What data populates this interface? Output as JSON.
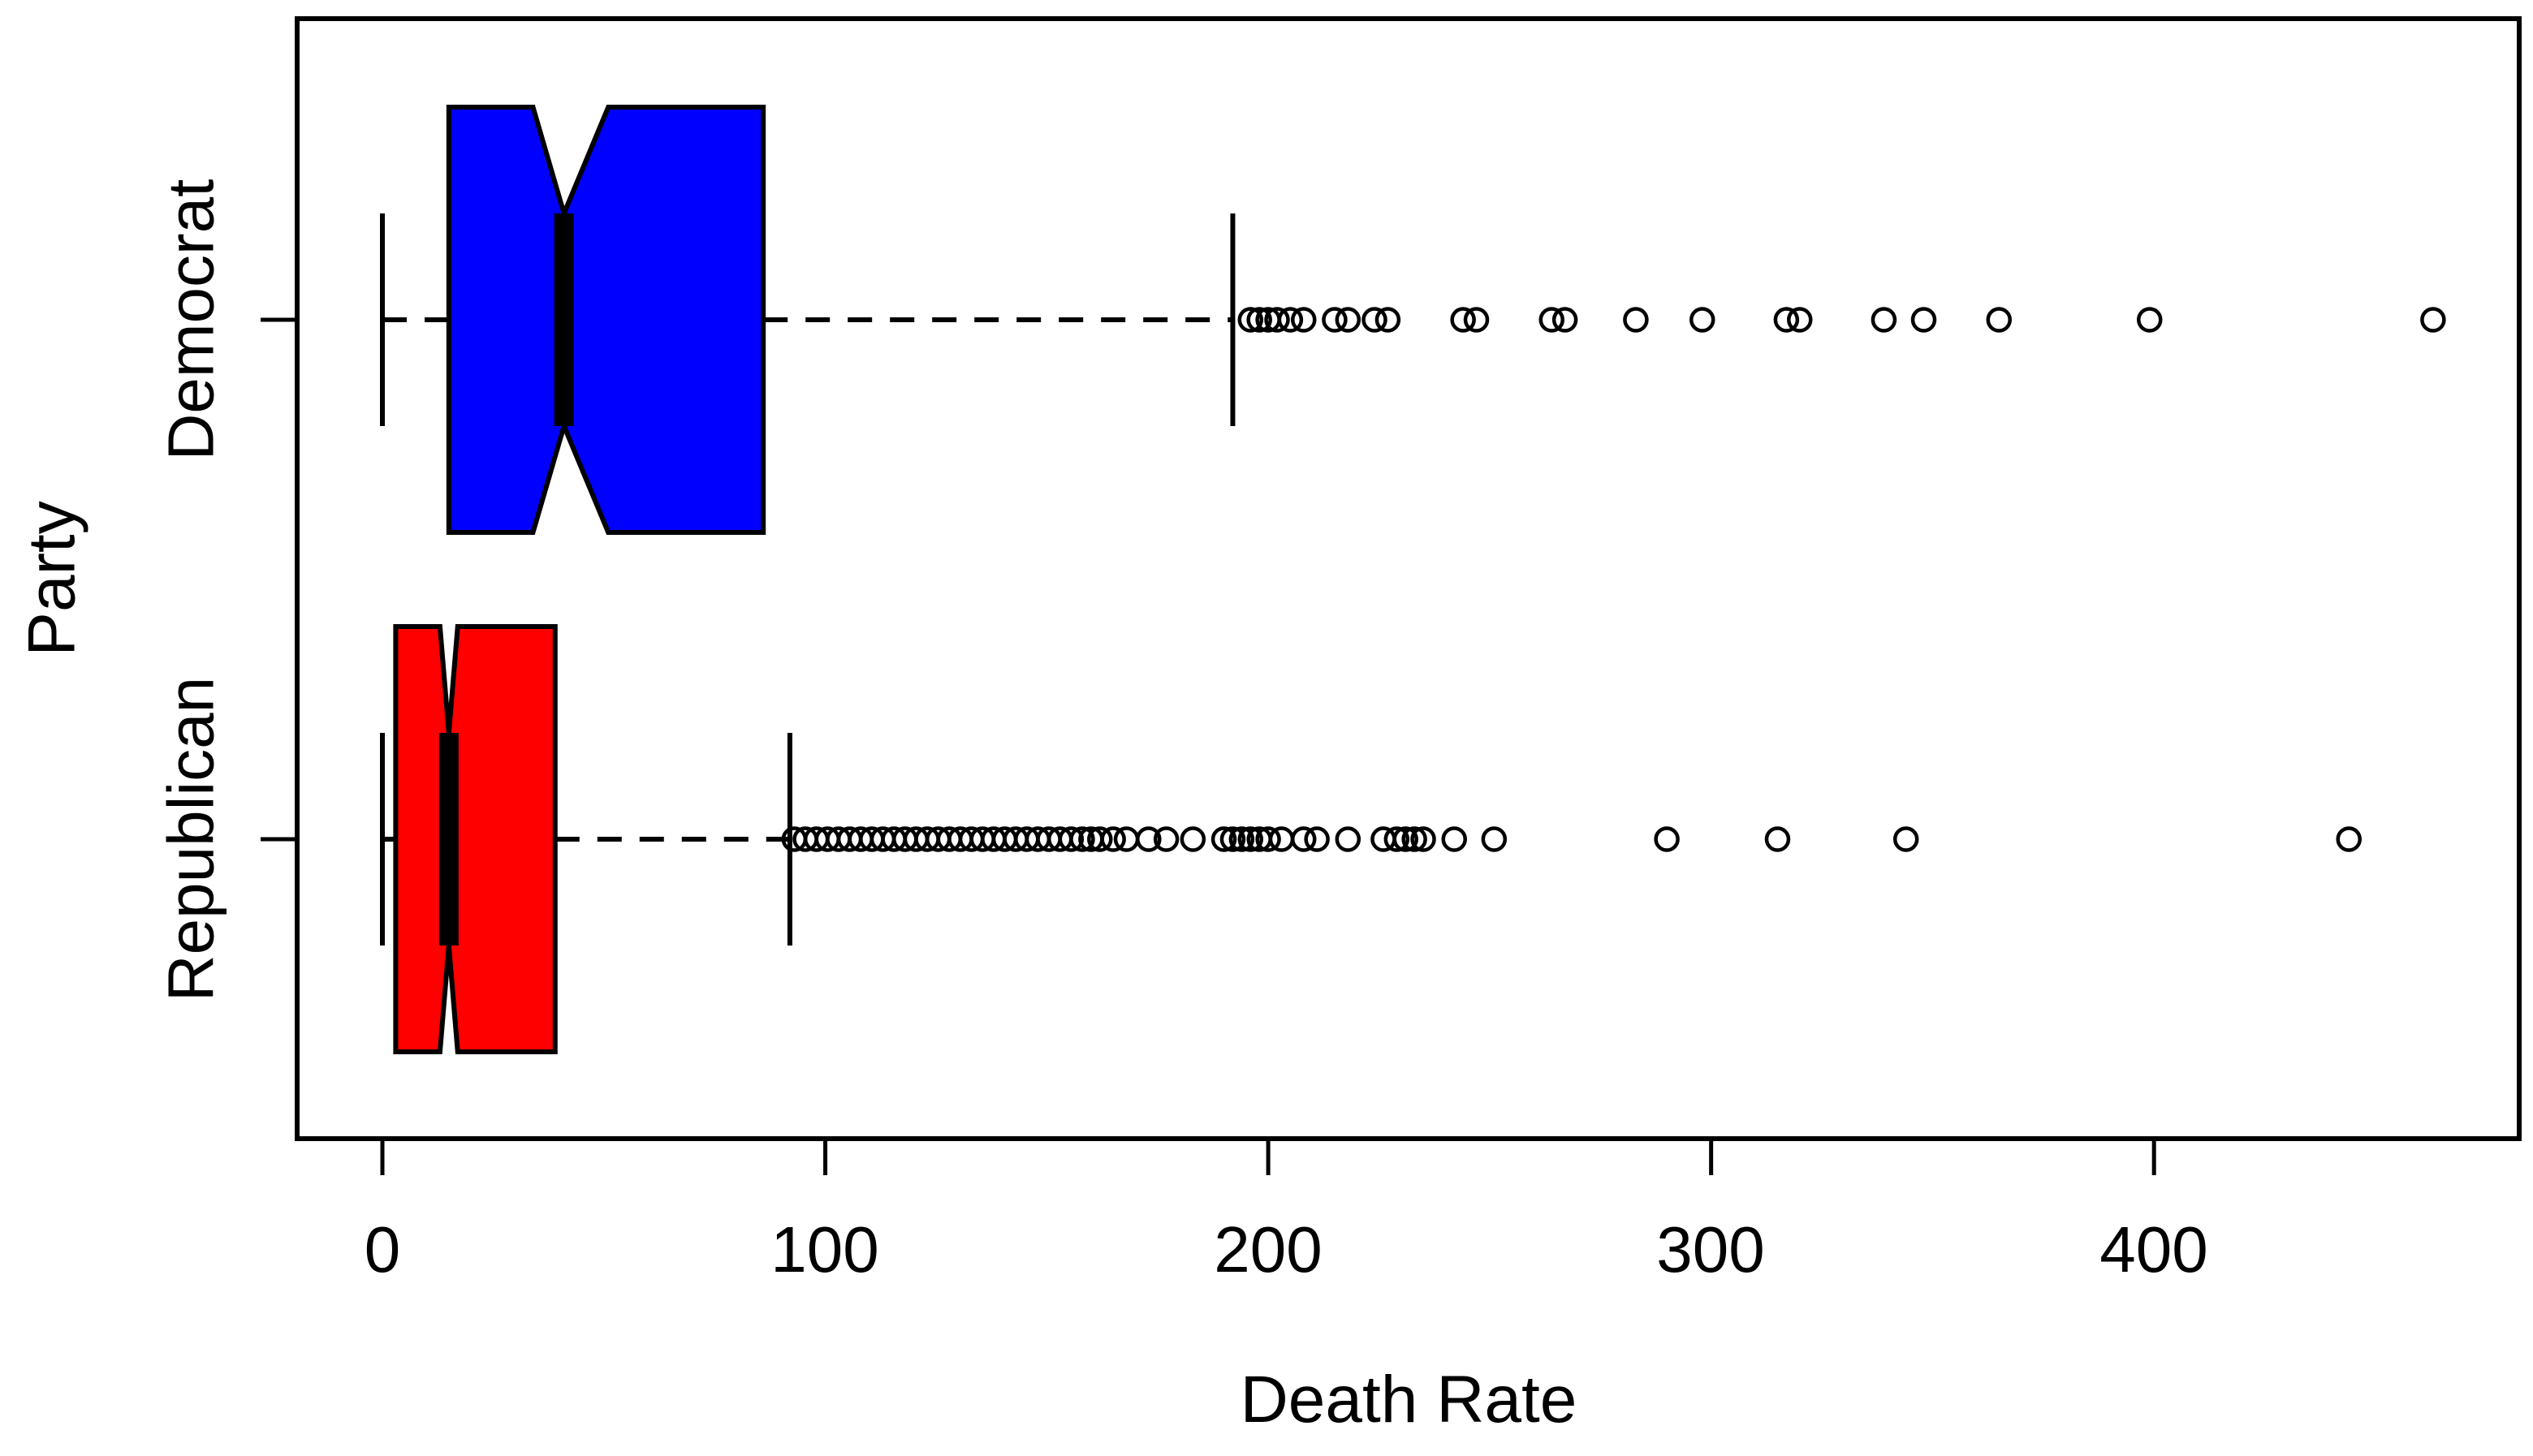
{
  "figure": {
    "background": "#ffffff",
    "frame_color": "#000000"
  },
  "chart_data": {
    "type": "boxplot",
    "orientation": "horizontal",
    "notched": true,
    "title": "",
    "xlabel": "Death Rate",
    "ylabel": "Party",
    "x_ticks": [
      0,
      100,
      200,
      300,
      400
    ],
    "xlim": [
      -19.25,
      482.45
    ],
    "grid": false,
    "legend": "none",
    "categories": [
      "Democrat",
      "Republican"
    ],
    "series": [
      {
        "name": "Democrat",
        "color": "#0000ff",
        "whisker_low": 0,
        "q1": 15,
        "median": 41,
        "q3": 86,
        "whisker_high": 192,
        "notch_low": 34,
        "notch_high": 51,
        "outliers": [
          196,
          198,
          200,
          202,
          205,
          208,
          215,
          218,
          224,
          227,
          244,
          247,
          264,
          267,
          283,
          298,
          317,
          320,
          339,
          348,
          365,
          399,
          463
        ]
      },
      {
        "name": "Republican",
        "color": "#ff0000",
        "whisker_low": 0,
        "q1": 3,
        "median": 15,
        "q3": 39,
        "whisker_high": 92,
        "notch_low": 13,
        "notch_high": 17,
        "outliers": [
          93,
          95.5,
          98,
          100.5,
          103,
          105.5,
          108,
          110.5,
          113,
          115.5,
          118,
          120.5,
          123,
          125.5,
          128,
          130.5,
          133,
          135.5,
          138,
          140.5,
          143,
          145.5,
          148,
          150.5,
          153,
          155.5,
          158,
          160,
          162,
          165,
          168,
          173,
          177,
          183,
          190,
          192,
          194,
          196,
          198,
          200,
          203,
          208,
          211,
          218,
          226,
          229,
          231,
          233,
          235,
          242,
          251,
          290,
          315,
          344,
          444
        ]
      }
    ]
  }
}
